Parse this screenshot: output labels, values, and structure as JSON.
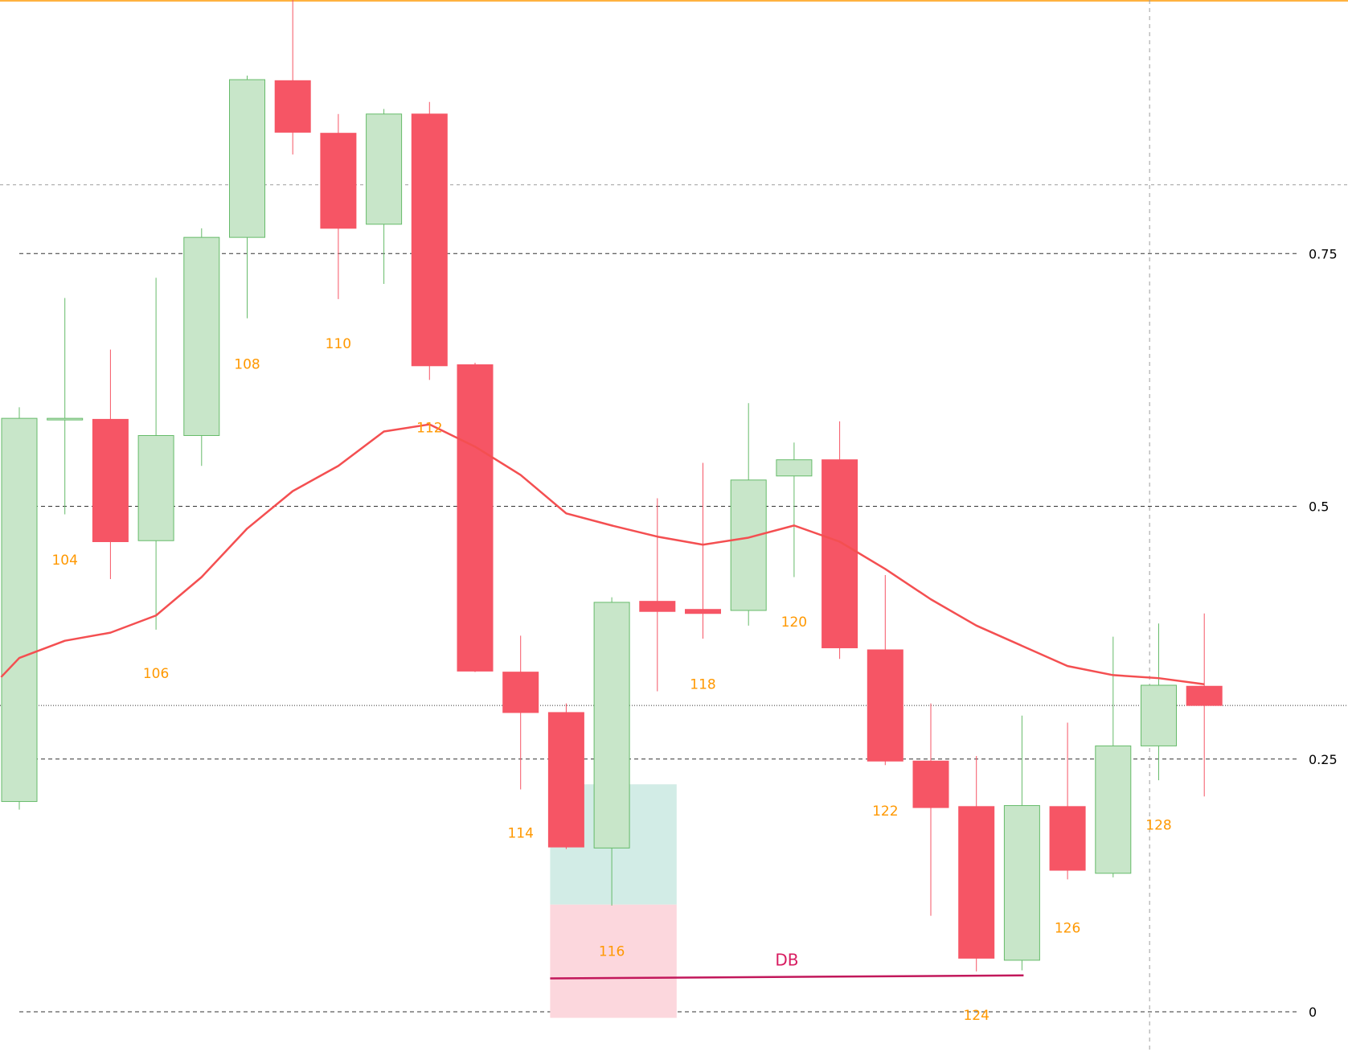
{
  "chart_data": {
    "type": "candlestick",
    "title": "",
    "xlabel": "",
    "ylabel": "",
    "x_range": [
      103,
      129
    ],
    "ylim": [
      -0.03,
      1.0
    ],
    "grid": false,
    "colors": {
      "up_fill": "#c8e6c9",
      "up_border": "#66bb6a",
      "down_fill": "#f65565",
      "moving_average": "#f44f51",
      "bar_numbers": "#ff9800",
      "db_line": "#c2185b",
      "zone_upper": "#d2ece6",
      "zone_lower": "#fcd7dd",
      "fib_lines": "#333333",
      "top_line": "#ff9800"
    },
    "fib_levels": [
      {
        "value": 0.75,
        "label": "0.75"
      },
      {
        "value": 0.5,
        "label": "0.5"
      },
      {
        "value": 0.25,
        "label": "0.25"
      },
      {
        "value": 0,
        "label": "0"
      }
    ],
    "minor_lines": [
      0.818,
      0.303
    ],
    "top_line": 1.0,
    "vertical_marker_x": 127.8,
    "candles": [
      {
        "x": 103,
        "open": 0.208,
        "high": 0.598,
        "low": 0.2,
        "close": 0.587
      },
      {
        "x": 104,
        "open": 0.586,
        "high": 0.706,
        "low": 0.492,
        "close": 0.587
      },
      {
        "x": 105,
        "open": 0.586,
        "high": 0.655,
        "low": 0.428,
        "close": 0.465
      },
      {
        "x": 106,
        "open": 0.466,
        "high": 0.726,
        "low": 0.378,
        "close": 0.57
      },
      {
        "x": 107,
        "open": 0.57,
        "high": 0.775,
        "low": 0.54,
        "close": 0.766
      },
      {
        "x": 108,
        "open": 0.766,
        "high": 0.926,
        "low": 0.686,
        "close": 0.922
      },
      {
        "x": 109,
        "open": 0.921,
        "high": 1.002,
        "low": 0.848,
        "close": 0.87
      },
      {
        "x": 110,
        "open": 0.869,
        "high": 0.888,
        "low": 0.705,
        "close": 0.775
      },
      {
        "x": 111,
        "open": 0.779,
        "high": 0.893,
        "low": 0.72,
        "close": 0.888
      },
      {
        "x": 112,
        "open": 0.888,
        "high": 0.9,
        "low": 0.625,
        "close": 0.639
      },
      {
        "x": 113,
        "open": 0.64,
        "high": 0.642,
        "low": 0.336,
        "close": 0.337
      },
      {
        "x": 114,
        "open": 0.336,
        "high": 0.372,
        "low": 0.22,
        "close": 0.296
      },
      {
        "x": 115,
        "open": 0.296,
        "high": 0.305,
        "low": 0.161,
        "close": 0.163
      },
      {
        "x": 116,
        "open": 0.162,
        "high": 0.41,
        "low": 0.105,
        "close": 0.405
      },
      {
        "x": 117,
        "open": 0.406,
        "high": 0.508,
        "low": 0.317,
        "close": 0.396
      },
      {
        "x": 118,
        "open": 0.398,
        "high": 0.543,
        "low": 0.369,
        "close": 0.394
      },
      {
        "x": 119,
        "open": 0.397,
        "high": 0.602,
        "low": 0.382,
        "close": 0.526
      },
      {
        "x": 120,
        "open": 0.53,
        "high": 0.563,
        "low": 0.43,
        "close": 0.546
      },
      {
        "x": 121,
        "open": 0.546,
        "high": 0.584,
        "low": 0.349,
        "close": 0.36
      },
      {
        "x": 122,
        "open": 0.358,
        "high": 0.432,
        "low": 0.244,
        "close": 0.248
      },
      {
        "x": 123,
        "open": 0.248,
        "high": 0.305,
        "low": 0.095,
        "close": 0.202
      },
      {
        "x": 124,
        "open": 0.203,
        "high": 0.253,
        "low": 0.04,
        "close": 0.053
      },
      {
        "x": 125,
        "open": 0.051,
        "high": 0.293,
        "low": 0.041,
        "close": 0.204
      },
      {
        "x": 126,
        "open": 0.203,
        "high": 0.286,
        "low": 0.131,
        "close": 0.14
      },
      {
        "x": 127,
        "open": 0.137,
        "high": 0.371,
        "low": 0.133,
        "close": 0.263
      },
      {
        "x": 128,
        "open": 0.263,
        "high": 0.384,
        "low": 0.229,
        "close": 0.323
      },
      {
        "x": 129,
        "open": 0.322,
        "high": 0.394,
        "low": 0.213,
        "close": 0.303
      }
    ],
    "moving_average": {
      "x": [
        102.6,
        103,
        104,
        105,
        106,
        107,
        108,
        109,
        110,
        111,
        112,
        113,
        114,
        115,
        116,
        117,
        118,
        119,
        120,
        121,
        122,
        123,
        124,
        125,
        126,
        127,
        128,
        129
      ],
      "y": [
        0.331,
        0.35,
        0.367,
        0.375,
        0.392,
        0.43,
        0.478,
        0.515,
        0.54,
        0.574,
        0.581,
        0.559,
        0.531,
        0.493,
        0.481,
        0.47,
        0.462,
        0.469,
        0.481,
        0.465,
        0.438,
        0.408,
        0.382,
        0.362,
        0.342,
        0.333,
        0.33,
        0.324
      ]
    },
    "bar_numbers": [
      {
        "x": 104,
        "label": "104",
        "y": 0.447
      },
      {
        "x": 106,
        "label": "106",
        "y": 0.335
      },
      {
        "x": 108,
        "label": "108",
        "y": 0.641
      },
      {
        "x": 110,
        "label": "110",
        "y": 0.661
      },
      {
        "x": 112,
        "label": "112",
        "y": 0.578
      },
      {
        "x": 114,
        "label": "114",
        "y": 0.177
      },
      {
        "x": 116,
        "label": "116",
        "y": 0.06
      },
      {
        "x": 118,
        "label": "118",
        "y": 0.324
      },
      {
        "x": 120,
        "label": "120",
        "y": 0.386
      },
      {
        "x": 122,
        "label": "122",
        "y": 0.199
      },
      {
        "x": 124,
        "label": "124",
        "y": -0.003
      },
      {
        "x": 126,
        "label": "126",
        "y": 0.083
      },
      {
        "x": 128,
        "label": "128",
        "y": 0.185
      }
    ],
    "zone": {
      "x_start": 115,
      "x_end": 117,
      "top": 0.225,
      "mid": 0.106,
      "bottom": -0.006
    },
    "db_line": {
      "label": "DB",
      "x_start": 115,
      "x_end": 125,
      "y_start": 0.033,
      "y_end": 0.036
    }
  }
}
